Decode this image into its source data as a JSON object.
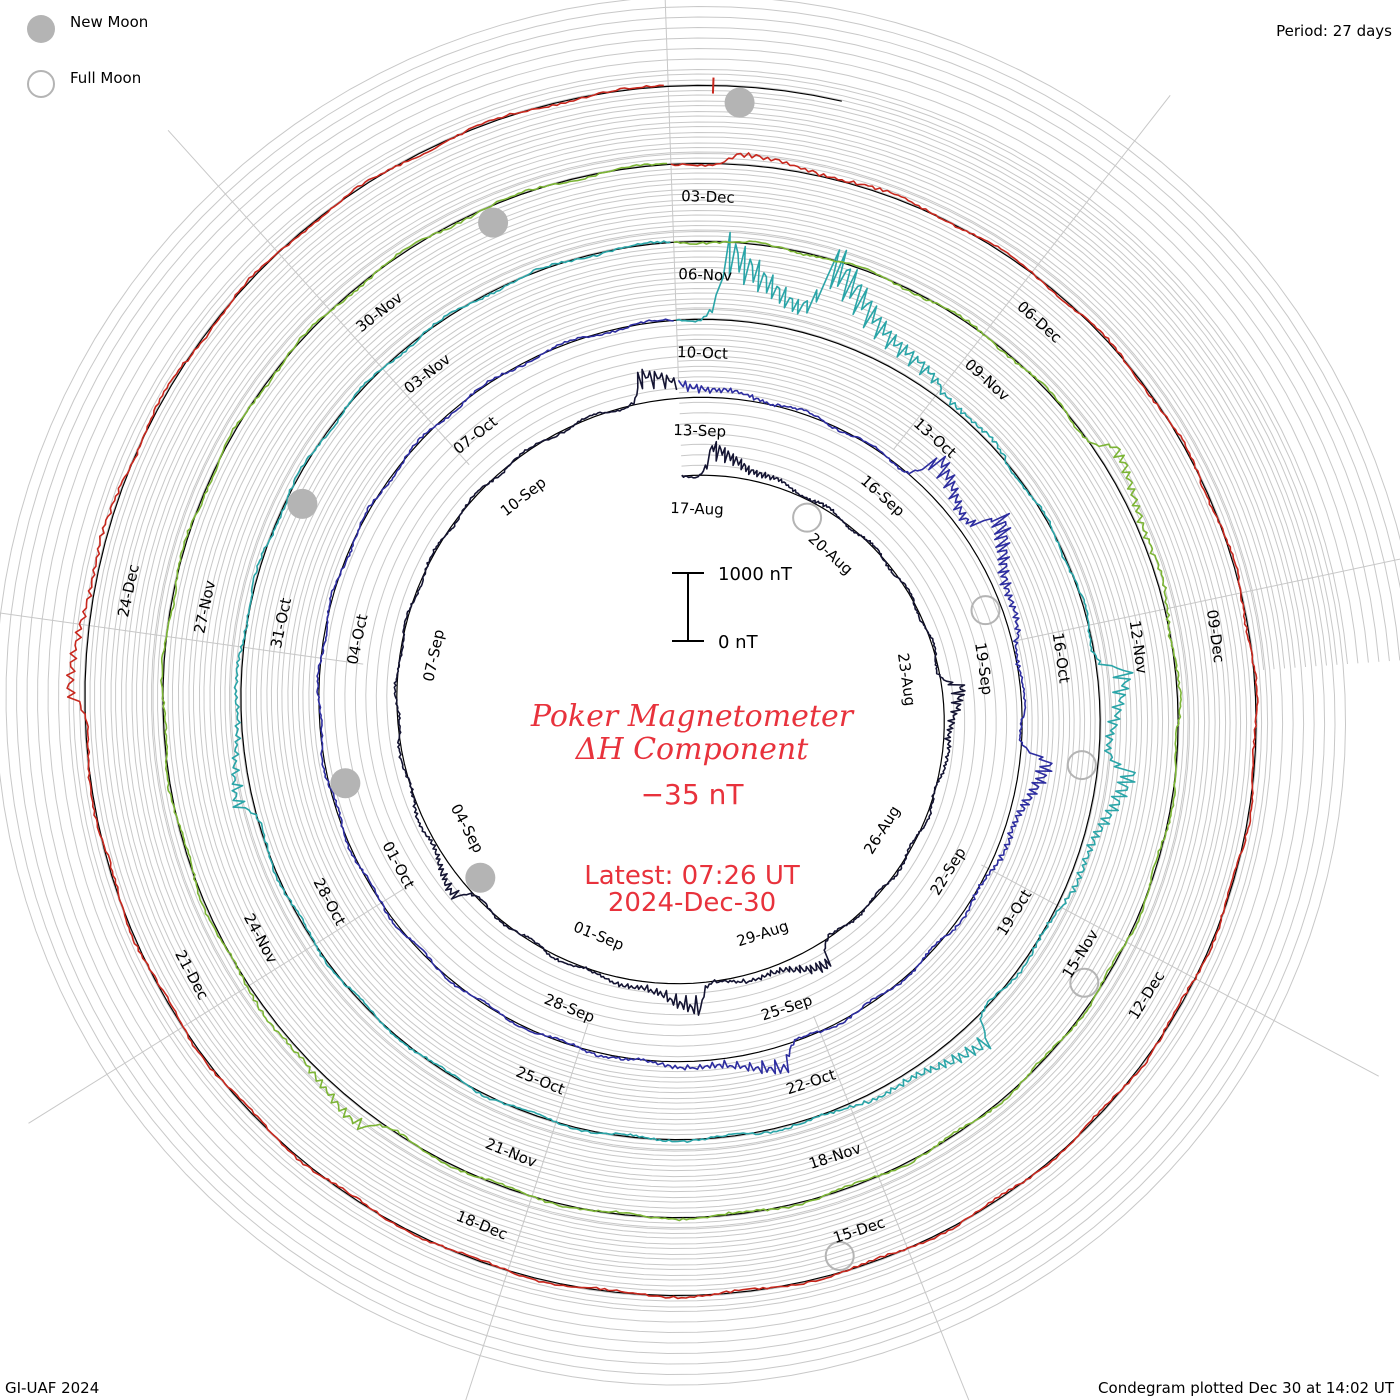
{
  "legend": {
    "new_moon": "New Moon",
    "full_moon": "Full Moon"
  },
  "period_text": "Period: 27 days",
  "footer_left": "GI-UAF 2024",
  "footer_right": "Condegram plotted Dec 30 at 14:02 UT",
  "title_line1": "Poker Magnetometer",
  "title_line2": "ΔH Component",
  "current_value": "−35 nT",
  "latest_time": "Latest: 07:26 UT",
  "latest_date": "2024-Dec-30",
  "scale": {
    "top_label": "1000 nT",
    "bottom_label": "0 nT"
  },
  "colors": {
    "title": "#e8323c",
    "grid": "#c8c8c8",
    "baseline": "#000000",
    "moon": "#b4b4b4"
  },
  "chart_data": {
    "type": "line",
    "subtype": "condegram-spiral",
    "period_days": 27,
    "start_date": "2024-08-17",
    "end_date": "2024-12-30",
    "y_unit": "nT",
    "scale_bar_nT": 1000,
    "series": [
      {
        "start": "2024-08-17",
        "color": "#141432",
        "dates": [
          "17-Aug",
          "20-Aug",
          "23-Aug",
          "26-Aug",
          "29-Aug",
          "01-Sep",
          "04-Sep",
          "07-Sep",
          "10-Sep"
        ]
      },
      {
        "start": "2024-09-13",
        "color": "#2d2da0",
        "dates": [
          "13-Sep",
          "16-Sep",
          "19-Sep",
          "22-Sep",
          "25-Sep",
          "28-Sep",
          "01-Oct",
          "04-Oct",
          "07-Oct"
        ]
      },
      {
        "start": "2024-10-10",
        "color": "#2aa5a8",
        "dates": [
          "10-Oct",
          "13-Oct",
          "16-Oct",
          "19-Oct",
          "22-Oct",
          "25-Oct",
          "28-Oct",
          "31-Oct",
          "03-Nov"
        ]
      },
      {
        "start": "2024-11-06",
        "color": "#7cb535",
        "dates": [
          "06-Nov",
          "09-Nov",
          "12-Nov",
          "15-Nov",
          "18-Nov",
          "21-Nov",
          "24-Nov",
          "27-Nov",
          "30-Nov"
        ]
      },
      {
        "start": "2024-12-03",
        "color": "#c8281e",
        "dates": [
          "03-Dec",
          "06-Dec",
          "09-Dec",
          "12-Dec",
          "15-Dec",
          "18-Dec",
          "21-Dec",
          "24-Dec"
        ]
      }
    ],
    "storms": [
      {
        "date": "2024-08-17",
        "dH": -450
      },
      {
        "date": "2024-08-23",
        "dH": -300
      },
      {
        "date": "2024-08-28",
        "dH": -350
      },
      {
        "date": "2024-08-30",
        "dH": -400
      },
      {
        "date": "2024-09-03",
        "dH": -250
      },
      {
        "date": "2024-09-12",
        "dH": -450
      },
      {
        "date": "2024-09-16",
        "dH": -500
      },
      {
        "date": "2024-09-17",
        "dH": -500
      },
      {
        "date": "2024-09-20",
        "dH": -450
      },
      {
        "date": "2024-09-25",
        "dH": -350
      },
      {
        "date": "2024-10-10",
        "dH": -1100
      },
      {
        "date": "2024-10-11",
        "dH": -900
      },
      {
        "date": "2024-10-16",
        "dH": -450
      },
      {
        "date": "2024-10-17",
        "dH": -400
      },
      {
        "date": "2024-10-20",
        "dH": -400
      },
      {
        "date": "2024-10-29",
        "dH": -250
      },
      {
        "date": "2024-11-10",
        "dH": -300
      },
      {
        "date": "2024-11-22",
        "dH": -250
      },
      {
        "date": "2024-12-03",
        "dH": -150
      },
      {
        "date": "2024-12-23",
        "dH": -250
      }
    ],
    "new_moons": [
      "2024-09-03",
      "2024-10-02",
      "2024-11-01",
      "2024-12-01",
      "2024-12-30"
    ],
    "full_moons": [
      "2024-08-19",
      "2024-09-18",
      "2024-10-17",
      "2024-11-15",
      "2024-12-15"
    ]
  }
}
